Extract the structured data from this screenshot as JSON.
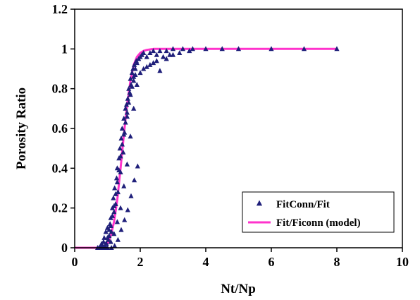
{
  "chart_data": {
    "type": "scatter",
    "xlabel": "Nt/Np",
    "ylabel": "Porosity Ratio",
    "xlim": [
      0,
      10
    ],
    "ylim": [
      0,
      1.2
    ],
    "x_ticks": [
      0,
      2,
      4,
      6,
      8,
      10
    ],
    "y_ticks": [
      0,
      0.2,
      0.4,
      0.6,
      0.8,
      1,
      1.2
    ],
    "x_tick_labels": [
      "0",
      "2",
      "4",
      "6",
      "8",
      "10"
    ],
    "y_tick_labels": [
      "0",
      "0.2",
      "0.4",
      "0.6",
      "0.8",
      "1",
      "1.2"
    ],
    "grid": false,
    "legend_position": "bottom-right",
    "colors": {
      "scatter": "#1f1f7a",
      "model": "#ff33cc"
    },
    "series": [
      {
        "name": "FitConn/Fit",
        "type": "scatter",
        "marker": "triangle",
        "x": [
          0.7,
          0.75,
          0.8,
          0.82,
          0.85,
          0.88,
          0.9,
          0.92,
          0.95,
          0.97,
          1.0,
          1.02,
          1.05,
          1.08,
          1.1,
          1.12,
          1.15,
          1.18,
          1.2,
          1.22,
          1.25,
          1.28,
          1.3,
          1.32,
          1.35,
          1.38,
          1.4,
          1.42,
          1.45,
          1.48,
          1.5,
          1.52,
          1.55,
          1.58,
          1.6,
          1.62,
          1.65,
          1.68,
          1.7,
          1.72,
          1.75,
          1.78,
          1.8,
          1.82,
          1.85,
          1.88,
          1.9,
          1.95,
          2.0,
          2.05,
          2.1,
          2.2,
          2.3,
          2.4,
          2.5,
          2.6,
          2.8,
          3.0,
          3.3,
          3.6,
          4.0,
          4.5,
          5.0,
          6.0,
          7.0,
          8.0,
          0.95,
          1.0,
          1.05,
          1.1,
          1.15,
          1.2,
          1.25,
          1.3,
          1.35,
          1.4,
          1.45,
          1.5,
          1.55,
          1.6,
          1.65,
          1.7,
          1.75,
          1.8,
          1.85,
          0.9,
          1.0,
          1.1,
          1.2,
          1.3,
          1.4,
          1.5,
          1.6,
          1.7,
          1.8,
          1.9,
          2.0,
          2.2,
          2.4,
          2.6,
          2.8,
          3.0,
          1.12,
          1.22,
          1.32,
          1.42,
          1.52,
          1.62,
          1.72,
          1.82,
          1.92,
          2.1,
          2.3,
          2.5,
          2.7,
          2.9,
          3.2,
          3.5
        ],
        "y": [
          0.0,
          0.0,
          0.01,
          0.02,
          0.0,
          0.03,
          0.05,
          0.01,
          0.08,
          0.02,
          0.1,
          0.04,
          0.06,
          0.12,
          0.15,
          0.08,
          0.2,
          0.25,
          0.18,
          0.3,
          0.22,
          0.35,
          0.4,
          0.28,
          0.45,
          0.5,
          0.38,
          0.55,
          0.6,
          0.48,
          0.65,
          0.58,
          0.7,
          0.72,
          0.66,
          0.75,
          0.8,
          0.78,
          0.85,
          0.82,
          0.88,
          0.9,
          0.86,
          0.92,
          0.9,
          0.94,
          0.93,
          0.95,
          0.96,
          0.97,
          0.98,
          0.96,
          0.98,
          0.99,
          0.97,
          0.99,
          0.99,
          1.0,
          1.0,
          1.0,
          1.0,
          1.0,
          1.0,
          1.0,
          1.0,
          1.0,
          0.02,
          0.05,
          0.09,
          0.11,
          0.16,
          0.21,
          0.27,
          0.33,
          0.39,
          0.46,
          0.52,
          0.57,
          0.63,
          0.68,
          0.73,
          0.77,
          0.81,
          0.84,
          0.87,
          0.0,
          0.0,
          0.03,
          0.07,
          0.13,
          0.2,
          0.31,
          0.42,
          0.56,
          0.7,
          0.82,
          0.88,
          0.91,
          0.93,
          0.89,
          0.95,
          0.97,
          0.0,
          0.01,
          0.04,
          0.09,
          0.14,
          0.19,
          0.26,
          0.34,
          0.41,
          0.9,
          0.92,
          0.94,
          0.96,
          0.97,
          0.98,
          0.99
        ]
      },
      {
        "name": "Fit/Ficonn (model)",
        "type": "line",
        "x": [
          0.0,
          0.5,
          0.8,
          0.9,
          1.0,
          1.1,
          1.2,
          1.3,
          1.4,
          1.5,
          1.6,
          1.7,
          1.8,
          1.9,
          2.0,
          2.1,
          2.2,
          2.4,
          2.6,
          3.0,
          4.0,
          6.0,
          8.0
        ],
        "y": [
          0.0,
          0.0,
          0.0,
          0.005,
          0.02,
          0.06,
          0.13,
          0.24,
          0.4,
          0.57,
          0.72,
          0.84,
          0.92,
          0.96,
          0.98,
          0.99,
          0.995,
          1.0,
          1.0,
          1.0,
          1.0,
          1.0,
          1.0
        ]
      }
    ]
  }
}
